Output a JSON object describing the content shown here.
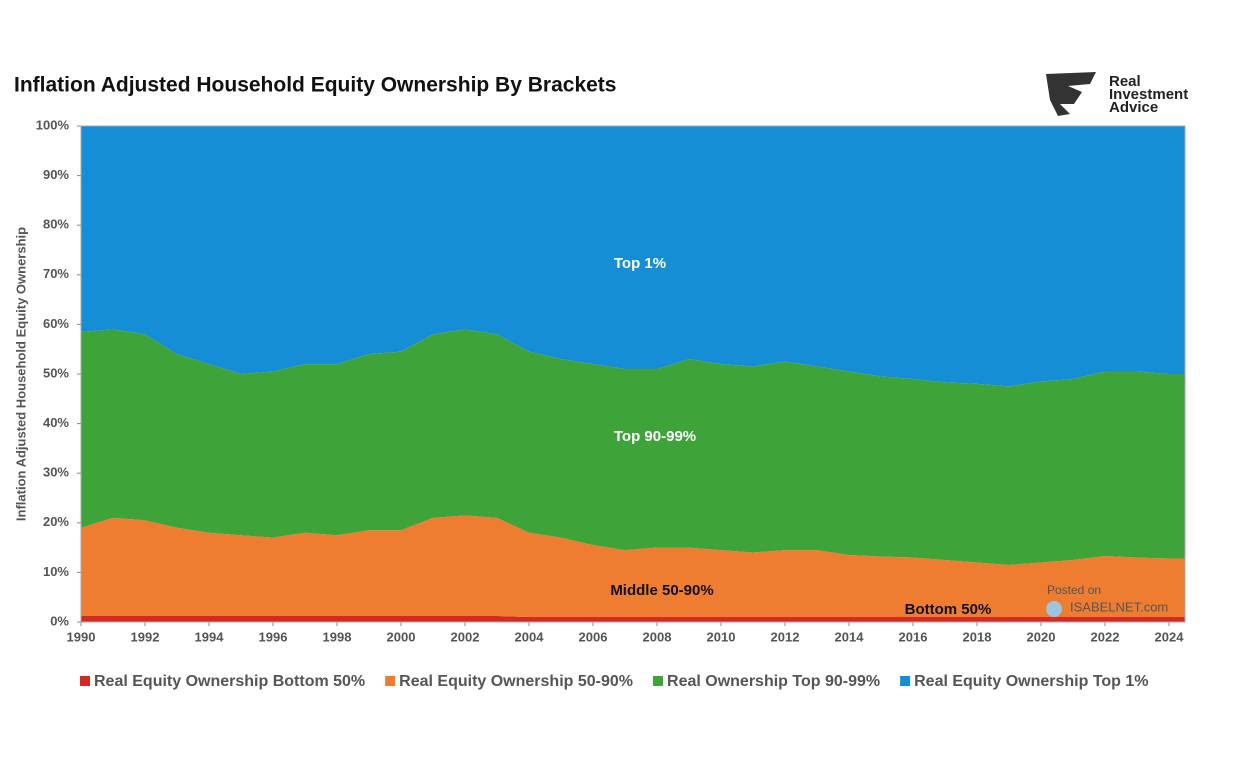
{
  "chart_data": {
    "type": "stacked_area",
    "title": "Inflation Adjusted Household Equity Ownership By Brackets",
    "y_axis_label": "Inflation Adjusted Household Equity Ownership",
    "logo": [
      "Real",
      "Investment",
      "Advice"
    ],
    "annotations": [
      "Top 1%",
      "Top 90-99%",
      "Middle 50-90%",
      "Bottom 50%"
    ],
    "source": [
      "Posted on",
      "ISABELNET.com"
    ],
    "x": [
      1990,
      1991,
      1992,
      1993,
      1994,
      1995,
      1996,
      1997,
      1998,
      1999,
      2000,
      2001,
      2002,
      2003,
      2004,
      2005,
      2006,
      2007,
      2008,
      2009,
      2010,
      2011,
      2012,
      2013,
      2014,
      2015,
      2016,
      2017,
      2018,
      2019,
      2020,
      2021,
      2022,
      2023,
      2024,
      2024.5
    ],
    "series": [
      {
        "name": "Real Equity Ownership Bottom 50%",
        "color": "#d42a22",
        "values": [
          1.2,
          1.2,
          1.2,
          1.2,
          1.2,
          1.2,
          1.2,
          1.2,
          1.2,
          1.2,
          1.2,
          1.2,
          1.2,
          1.2,
          1,
          1,
          1,
          1,
          1,
          1,
          1,
          1,
          1,
          1,
          1,
          1,
          1,
          1,
          1,
          1,
          1,
          1,
          1,
          1,
          1,
          1
        ]
      },
      {
        "name": "Real Equity Ownership 50-90%",
        "color": "#ee7d32",
        "values": [
          17.8,
          19.8,
          19.3,
          17.8,
          16.8,
          16.3,
          15.8,
          16.8,
          16.3,
          17.3,
          17.3,
          19.8,
          20.3,
          19.8,
          17,
          16,
          14.5,
          13.5,
          14,
          14,
          13.5,
          13,
          13.5,
          13.5,
          12.5,
          12.2,
          12,
          11.5,
          11,
          10.5,
          11,
          11.5,
          12.3,
          12,
          11.8,
          11.8
        ]
      },
      {
        "name": "Real Ownership Top 90-99%",
        "color": "#3ea43a",
        "values": [
          39.5,
          38,
          37.5,
          35,
          34,
          32.5,
          33.5,
          34,
          34.5,
          35.5,
          36,
          37,
          37.5,
          37,
          36.5,
          36,
          36.5,
          36.5,
          36,
          38,
          37.5,
          37.5,
          38,
          37,
          37,
          36.3,
          36,
          35.8,
          36,
          36,
          36.5,
          36.5,
          37.2,
          37.5,
          37.2,
          37.2
        ]
      },
      {
        "name": "Real Equity Ownership Top 1%",
        "color": "#168ed6",
        "values": [
          41.5,
          41,
          42,
          46,
          48,
          50,
          49.5,
          48,
          48,
          46,
          45.5,
          42,
          41,
          42,
          45.5,
          47,
          48,
          49,
          49,
          47,
          48,
          48.5,
          47.5,
          48.5,
          49.5,
          50.5,
          51,
          51.7,
          52,
          52.5,
          51.5,
          51,
          49.5,
          49.5,
          50,
          50
        ]
      }
    ],
    "xlim": [
      1990,
      2024.5
    ],
    "xticks": [
      1990,
      1992,
      1994,
      1996,
      1998,
      2000,
      2002,
      2004,
      2006,
      2008,
      2010,
      2012,
      2014,
      2016,
      2018,
      2020,
      2022,
      2024
    ],
    "ylim": [
      0,
      100
    ],
    "yticks": [
      {
        "value": 0,
        "label": "0%"
      },
      {
        "value": 10,
        "label": "10%"
      },
      {
        "value": 20,
        "label": "20%"
      },
      {
        "value": 30,
        "label": "30%"
      },
      {
        "value": 40,
        "label": "40%"
      },
      {
        "value": 50,
        "label": "50%"
      },
      {
        "value": 60,
        "label": "60%"
      },
      {
        "value": 70,
        "label": "70%"
      },
      {
        "value": 80,
        "label": "80%"
      },
      {
        "value": 90,
        "label": "90%"
      },
      {
        "value": 100,
        "label": "100%"
      }
    ],
    "legend": "bottom"
  }
}
